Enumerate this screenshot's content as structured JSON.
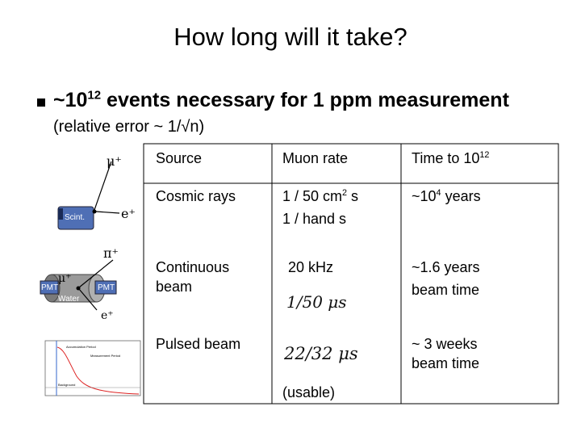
{
  "title": "How long will it take?",
  "bullet": {
    "main_prefix": "~10",
    "main_exp": "12",
    "main_suffix": " events necessary for 1 ppm measurement",
    "sub": "(relative error ~ 1/√n)"
  },
  "table": {
    "headers": {
      "source": "Source",
      "rate": "Muon rate",
      "time_prefix": "Time to 10",
      "time_exp": "12"
    },
    "rows": {
      "cosmic": {
        "source": "Cosmic rays",
        "rate_line1_prefix": "1 / 50 cm",
        "rate_line1_exp": "2",
        "rate_line1_suffix": " s",
        "rate_line2": "1 / hand s",
        "time_prefix": "~10",
        "time_exp": "4",
        "time_suffix": " years"
      },
      "continuous": {
        "source_line1": "Continuous",
        "source_line2": "beam",
        "rate": "20 kHz",
        "rate_formula": "1/50  μs",
        "time_line1": "~1.6 years",
        "time_line2": "beam time"
      },
      "pulsed": {
        "source": "Pulsed beam",
        "rate_formula": "22/32  μs",
        "rate_note": "(usable)",
        "time_line1": "~ 3 weeks",
        "time_line2": "beam time"
      }
    }
  },
  "diagram": {
    "mu_plus": "μ⁺",
    "e_plus": "e⁺",
    "pi_plus": "π⁺",
    "scint": "Scint.",
    "pmt_left": "PMT",
    "pmt_right": "PMT",
    "water": "Water",
    "mu_plus_2": "μ⁺",
    "e_plus_2": "e⁺"
  },
  "thumbnail": {
    "label_accum": "Accumulation Period",
    "label_meas": "Measurement Period",
    "label_bg": "Background"
  },
  "colors": {
    "box_fill": "#4f6fb5",
    "curve": "#dd2222",
    "cylinder": "#888888"
  }
}
